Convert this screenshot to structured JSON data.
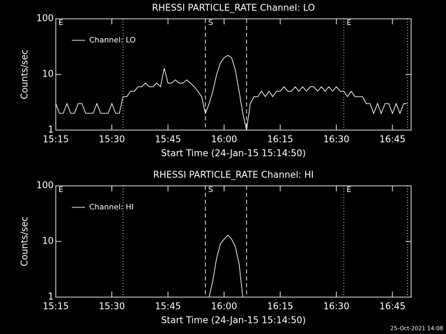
{
  "chart_data": [
    {
      "type": "line",
      "title": "RHESSI PARTICLE_RATE Channel: LO",
      "x_label": "Start Time (24-Jan-15 15:14:50)",
      "y_label": "Counts/sec",
      "x": [
        "15:15",
        "15:16",
        "15:17",
        "15:18",
        "15:19",
        "15:20",
        "15:21",
        "15:22",
        "15:23",
        "15:24",
        "15:25",
        "15:26",
        "15:27",
        "15:28",
        "15:29",
        "15:30",
        "15:31",
        "15:32",
        "15:33",
        "15:34",
        "15:35",
        "15:36",
        "15:37",
        "15:38",
        "15:39",
        "15:40",
        "15:41",
        "15:42",
        "15:43",
        "15:44",
        "15:45",
        "15:46",
        "15:47",
        "15:48",
        "15:49",
        "15:50",
        "15:51",
        "15:52",
        "15:53",
        "15:54",
        "15:55",
        "15:56",
        "15:57",
        "15:58",
        "15:59",
        "16:00",
        "16:01",
        "16:02",
        "16:03",
        "16:04",
        "16:05",
        "16:06",
        "16:07",
        "16:08",
        "16:09",
        "16:10",
        "16:11",
        "16:12",
        "16:13",
        "16:14",
        "16:15",
        "16:16",
        "16:17",
        "16:18",
        "16:19",
        "16:20",
        "16:21",
        "16:22",
        "16:23",
        "16:24",
        "16:25",
        "16:26",
        "16:27",
        "16:28",
        "16:29",
        "16:30",
        "16:31",
        "16:32",
        "16:33",
        "16:34",
        "16:35",
        "16:36",
        "16:37",
        "16:38",
        "16:39",
        "16:40",
        "16:41",
        "16:42",
        "16:43",
        "16:44",
        "16:45",
        "16:46",
        "16:47",
        "16:48",
        "16:49"
      ],
      "series": [
        {
          "name": "Channel: LO",
          "color": "#ffffff",
          "values": [
            3,
            2,
            2,
            3,
            2,
            2,
            3,
            3,
            2,
            2,
            2,
            3,
            2,
            2,
            2,
            3,
            2,
            2,
            4,
            4,
            5,
            5,
            6,
            6,
            7,
            6,
            6,
            7,
            6,
            13,
            7,
            7,
            8,
            7,
            7,
            8,
            7,
            6,
            5,
            4,
            2,
            3,
            5,
            10,
            16,
            20,
            22,
            20,
            12,
            5,
            2,
            1,
            3,
            4,
            4,
            5,
            4,
            5,
            4,
            5,
            5,
            6,
            5,
            5,
            6,
            5,
            6,
            5,
            6,
            6,
            5,
            6,
            5,
            6,
            5,
            6,
            5,
            5,
            4,
            5,
            4,
            4,
            4,
            3,
            3,
            2,
            3,
            2,
            3,
            3,
            2,
            3,
            2,
            3,
            3
          ]
        }
      ],
      "xlim": [
        "15:15",
        "16:50"
      ],
      "xticks": [
        "15:15",
        "15:30",
        "15:45",
        "16:00",
        "16:15",
        "16:30",
        "16:45"
      ],
      "ylim": [
        1,
        100
      ],
      "yticks": [
        1,
        10,
        100
      ],
      "log_y": true,
      "markers": [
        {
          "x": "15:33",
          "style": "dotted"
        },
        {
          "x": "15:55",
          "style": "dashed"
        },
        {
          "x": "16:06",
          "style": "dashed"
        },
        {
          "x": "16:32",
          "style": "dotted"
        },
        {
          "x": "16:49",
          "style": "dotted"
        }
      ],
      "annotations": [
        {
          "x": "15:15",
          "text": "E"
        },
        {
          "x": "15:55",
          "text": "S"
        },
        {
          "x": "16:32",
          "text": "E"
        }
      ]
    },
    {
      "type": "line",
      "title": "RHESSI PARTICLE_RATE Channel: HI",
      "x_label": "Start Time (24-Jan-15 15:14:50)",
      "y_label": "Counts/sec",
      "x": [
        "15:56",
        "15:57",
        "15:58",
        "15:59",
        "16:00",
        "16:01",
        "16:02",
        "16:03",
        "16:04",
        "16:05"
      ],
      "series": [
        {
          "name": "Channel: HI",
          "color": "#ffffff",
          "values": [
            1,
            2,
            5,
            9,
            11,
            13,
            11,
            8,
            4,
            1
          ]
        }
      ],
      "xlim": [
        "15:15",
        "16:50"
      ],
      "xticks": [
        "15:15",
        "15:30",
        "15:45",
        "16:00",
        "16:15",
        "16:30",
        "16:45"
      ],
      "ylim": [
        1,
        100
      ],
      "yticks": [
        1,
        10,
        100
      ],
      "log_y": true,
      "markers": [
        {
          "x": "15:33",
          "style": "dotted"
        },
        {
          "x": "15:55",
          "style": "dashed"
        },
        {
          "x": "16:06",
          "style": "dashed"
        },
        {
          "x": "16:32",
          "style": "dotted"
        },
        {
          "x": "16:49",
          "style": "dotted"
        }
      ],
      "annotations": [
        {
          "x": "15:15",
          "text": "E"
        },
        {
          "x": "15:55",
          "text": "S"
        },
        {
          "x": "16:32",
          "text": "E"
        }
      ]
    }
  ],
  "footer": "25-Oct-2021 14:08"
}
